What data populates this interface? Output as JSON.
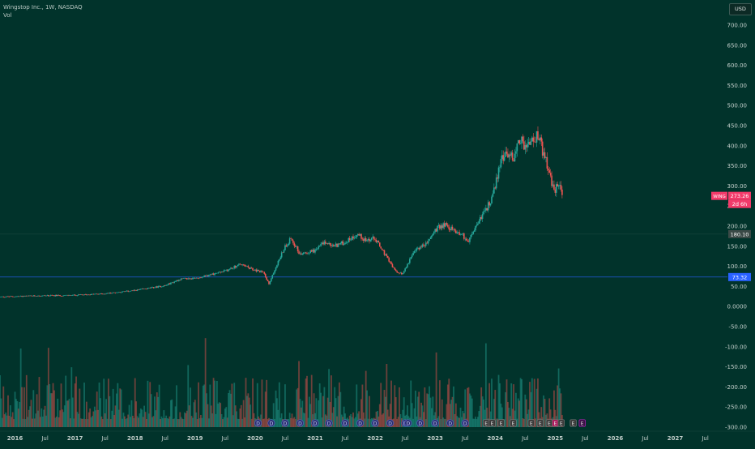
{
  "legend": {
    "title": "Wingstop Inc., 1W, NASDAQ",
    "vol_label": "Vol"
  },
  "currency_button": "USD",
  "price_tag": {
    "symbol": "WING",
    "price": "273.26",
    "countdown": "2d 6h"
  },
  "horizontal_lines": [
    {
      "label": "180.10",
      "value": 180.1,
      "color": "#1e4a43"
    },
    {
      "label": "73.32",
      "value": 73.32,
      "color": "#2962ff"
    }
  ],
  "colors": {
    "background": "#01332b",
    "up": "#26a69a",
    "down": "#ef5350",
    "price_tag": "#f23a6a",
    "event_marker": "#2a2f6e",
    "earnings_marker": "#3a3a3a",
    "dividend_marker": "#b0195e"
  },
  "event_markers": [
    "D",
    "D",
    "D",
    "D",
    "D",
    "D",
    "D",
    "D",
    "D",
    "D",
    "D",
    "D",
    "D",
    "D",
    "D",
    "D",
    "E",
    "E",
    "E",
    "E",
    "E",
    "E",
    "E",
    "E",
    "E",
    "E",
    "E"
  ],
  "chart_data": {
    "type": "candlestick",
    "title": "Wingstop Inc., 1W, NASDAQ",
    "y_axis": {
      "ticks": [
        "700.00",
        "650.00",
        "600.00",
        "550.00",
        "500.00",
        "450.00",
        "400.00",
        "350.00",
        "300.00",
        "250.00",
        "200.00",
        "150.00",
        "100.00",
        "50.00",
        "0.0000",
        "-50.00",
        "-100.00",
        "-150.00",
        "-200.00",
        "-250.00",
        "-300.00"
      ],
      "tick_values": [
        700,
        650,
        600,
        550,
        500,
        450,
        400,
        350,
        300,
        250,
        200,
        150,
        100,
        50,
        0,
        -50,
        -100,
        -150,
        -200,
        -250,
        -300
      ],
      "range": [
        -300,
        700
      ]
    },
    "x_axis": {
      "ticks": [
        "2016",
        "Jul",
        "2017",
        "Jul",
        "2018",
        "Jul",
        "2019",
        "Jul",
        "2020",
        "Jul",
        "2021",
        "Jul",
        "2022",
        "Jul",
        "2023",
        "Jul",
        "2024",
        "Jul",
        "2025",
        "Jul",
        "2026",
        "Jul",
        "2027",
        "Jul"
      ],
      "tick_times": [
        2016.0,
        2016.5,
        2017.0,
        2017.5,
        2018.0,
        2018.5,
        2019.0,
        2019.5,
        2020.0,
        2020.5,
        2021.0,
        2021.5,
        2022.0,
        2022.5,
        2023.0,
        2023.5,
        2024.0,
        2024.5,
        2025.0,
        2025.5,
        2026.0,
        2026.5,
        2027.0,
        2027.5
      ],
      "range": [
        2015.75,
        2027.87
      ]
    },
    "price_series": {
      "name": "WING",
      "points": [
        [
          2015.75,
          24
        ],
        [
          2016.0,
          25
        ],
        [
          2016.5,
          27
        ],
        [
          2017.0,
          28
        ],
        [
          2017.5,
          32
        ],
        [
          2018.0,
          40
        ],
        [
          2018.5,
          52
        ],
        [
          2018.75,
          68
        ],
        [
          2019.0,
          70
        ],
        [
          2019.5,
          88
        ],
        [
          2019.75,
          105
        ],
        [
          2020.0,
          90
        ],
        [
          2020.15,
          85
        ],
        [
          2020.23,
          55
        ],
        [
          2020.35,
          100
        ],
        [
          2020.5,
          150
        ],
        [
          2020.6,
          170
        ],
        [
          2020.75,
          130
        ],
        [
          2021.0,
          140
        ],
        [
          2021.15,
          160
        ],
        [
          2021.3,
          150
        ],
        [
          2021.5,
          160
        ],
        [
          2021.7,
          180
        ],
        [
          2021.85,
          165
        ],
        [
          2022.0,
          170
        ],
        [
          2022.2,
          120
        ],
        [
          2022.35,
          85
        ],
        [
          2022.45,
          80
        ],
        [
          2022.55,
          110
        ],
        [
          2022.7,
          145
        ],
        [
          2022.85,
          155
        ],
        [
          2023.0,
          190
        ],
        [
          2023.15,
          205
        ],
        [
          2023.3,
          190
        ],
        [
          2023.45,
          180
        ],
        [
          2023.55,
          160
        ],
        [
          2023.65,
          190
        ],
        [
          2023.75,
          220
        ],
        [
          2023.9,
          255
        ],
        [
          2024.0,
          300
        ],
        [
          2024.1,
          370
        ],
        [
          2024.2,
          380
        ],
        [
          2024.3,
          370
        ],
        [
          2024.42,
          420
        ],
        [
          2024.5,
          395
        ],
        [
          2024.6,
          410
        ],
        [
          2024.72,
          425
        ],
        [
          2024.8,
          380
        ],
        [
          2024.88,
          345
        ],
        [
          2024.95,
          300
        ],
        [
          2025.0,
          285
        ],
        [
          2025.05,
          310
        ],
        [
          2025.12,
          275
        ]
      ]
    },
    "volume_baseline": -300,
    "volume_range": [
      -300,
      -50
    ]
  }
}
